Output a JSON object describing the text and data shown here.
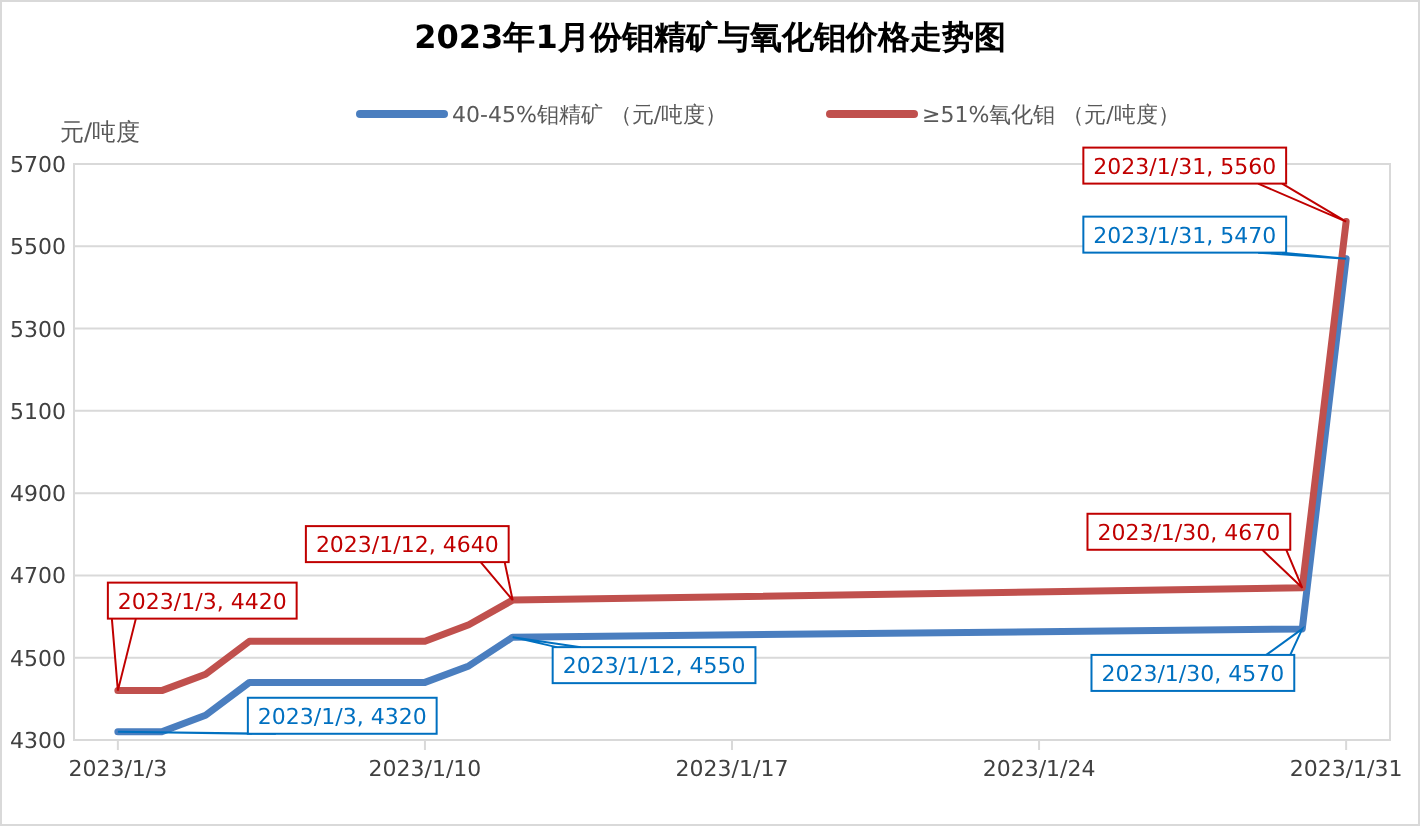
{
  "chart_data": {
    "type": "line",
    "title": "2023年1月份钼精矿与氧化钼价格走势图",
    "ylabel": "元/吨度",
    "x": [
      "2023-01-03",
      "2023-01-04",
      "2023-01-05",
      "2023-01-06",
      "2023-01-09",
      "2023-01-10",
      "2023-01-11",
      "2023-01-12",
      "2023-01-30",
      "2023-01-31"
    ],
    "series": [
      {
        "name": "40-45%钼精矿 （元/吨度）",
        "color": "#4a7ebf",
        "values": [
          4320,
          4320,
          4360,
          4440,
          4440,
          4440,
          4480,
          4550,
          4570,
          5470
        ]
      },
      {
        "name": "≥51%氧化钼 （元/吨度）",
        "color": "#c0504d",
        "values": [
          4420,
          4420,
          4460,
          4540,
          4540,
          4540,
          4580,
          4640,
          4670,
          5560
        ]
      }
    ],
    "xlim": [
      "2023-01-02",
      "2023-02-01"
    ],
    "xticks": [
      {
        "value": "2023-01-03",
        "label": "2023/1/3"
      },
      {
        "value": "2023-01-10",
        "label": "2023/1/10"
      },
      {
        "value": "2023-01-17",
        "label": "2023/1/17"
      },
      {
        "value": "2023-01-24",
        "label": "2023/1/24"
      },
      {
        "value": "2023-01-31",
        "label": "2023/1/31"
      }
    ],
    "ylim": [
      4300,
      5700
    ],
    "yticks": [
      4300,
      4500,
      4700,
      4900,
      5100,
      5300,
      5500,
      5700
    ],
    "grid": "y",
    "legend": "top",
    "marker": "none",
    "line_style": "solid",
    "annotations": [
      {
        "text": "2023/1/3, 4420",
        "x": "2023-01-03",
        "y": 4420
      },
      {
        "text": "2023/1/3, 4320",
        "x": "2023-01-03",
        "y": 4320
      },
      {
        "text": "2023/1/12, 4640",
        "x": "2023-01-12",
        "y": 4640
      },
      {
        "text": "2023/1/12, 4550",
        "x": "2023-01-12",
        "y": 4550
      },
      {
        "text": "2023/1/30, 4670",
        "x": "2023-01-30",
        "y": 4670
      },
      {
        "text": "2023/1/30, 4570",
        "x": "2023-01-30",
        "y": 4570
      },
      {
        "text": "2023/1/31, 5560",
        "x": "2023-01-31",
        "y": 5560
      },
      {
        "text": "2023/1/31, 5470",
        "x": "2023-01-31",
        "y": 5470
      }
    ]
  }
}
